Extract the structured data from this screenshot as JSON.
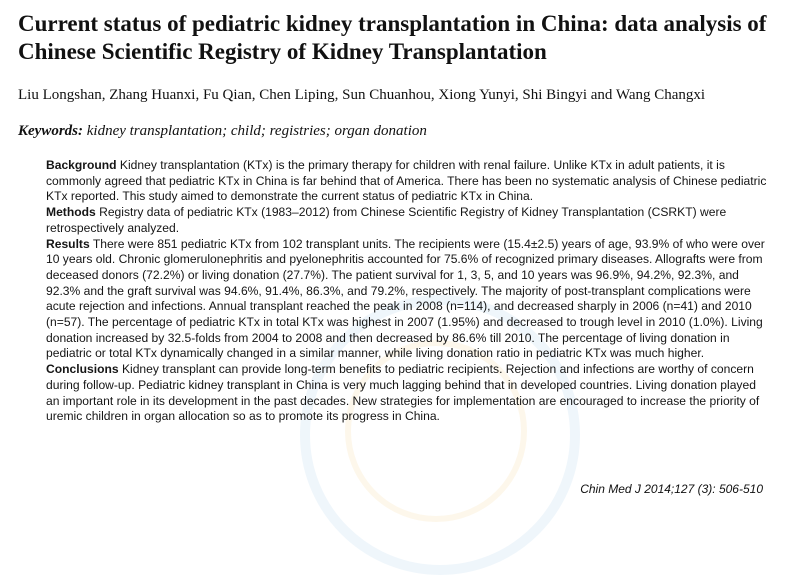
{
  "paper": {
    "title": "Current status of pediatric kidney transplantation in China: data analysis of Chinese Scientific Registry of Kidney Transplantation",
    "authors": "Liu Longshan, Zhang Huanxi, Fu Qian, Chen Liping, Sun Chuanhou, Xiong Yunyi, Shi Bingyi and Wang Changxi",
    "keywords_label": "Keywords:",
    "keywords": " kidney transplantation; child; registries; organ donation",
    "abstract": {
      "background_label": "Background",
      "background": "  Kidney transplantation (KTx) is the primary therapy for children with renal failure. Unlike KTx in adult patients, it is commonly agreed that pediatric KTx in China is far behind that of America. There has been no systematic analysis of Chinese pediatric KTx reported. This study aimed to demonstrate the current status of pediatric KTx in China.",
      "methods_label": "Methods",
      "methods": "  Registry data of pediatric KTx (1983–2012) from Chinese Scientific Registry of Kidney Transplantation (CSRKT) were retrospectively analyzed.",
      "results_label": "Results",
      "results": "  There were 851 pediatric KTx from 102 transplant units. The recipients were (15.4±2.5) years of age, 93.9% of who were over 10 years old. Chronic glomerulonephritis and pyelonephritis accounted for 75.6% of recognized primary diseases. Allografts were from deceased donors (72.2%) or living donation (27.7%). The patient survival for 1, 3, 5, and 10 years was 96.9%, 94.2%, 92.3%, and 92.3% and the graft survival was 94.6%, 91.4%, 86.3%, and 79.2%, respectively. The majority of post-transplant complications were acute rejection and infections. Annual transplant reached the peak in 2008 (n=114), and decreased sharply in 2006 (n=41) and 2010 (n=57). The percentage of pediatric KTx in total KTx was highest in 2007 (1.95%) and decreased to trough level in 2010 (1.0%). Living donation increased by 32.5-folds from 2004 to 2008 and then decreased by 86.6% till 2010. The percentage of living donation in pediatric or total KTx dynamically changed in a similar manner, while living donation ratio in pediatric KTx was much higher.",
      "conclusions_label": "Conclusions",
      "conclusions": "  Kidney transplant can provide long-term benefits to pediatric recipients. Rejection and infections are worthy of concern during follow-up. Pediatric kidney transplant in China is very much lagging behind that in developed countries. Living donation played an important role in its development in the past decades. New strategies for implementation are encouraged to increase the priority of uremic children in organ allocation so as to promote its progress in China."
    },
    "citation": "Chin Med J 2014;127 (3): 506-510"
  }
}
